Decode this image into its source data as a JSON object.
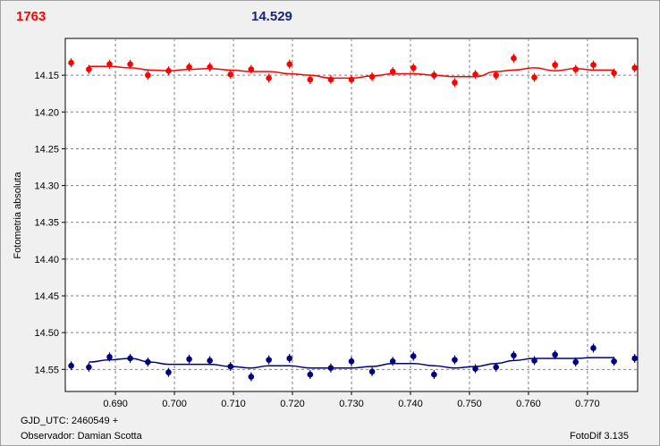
{
  "header": {
    "left_value": "1763",
    "left_color": "#ff0000",
    "right_value": "14.529",
    "right_color": "#1a237e"
  },
  "footer": {
    "gjd": "GJD_UTC: 2460549 +",
    "observer": "Observador: Damian Scotta",
    "software": "FotoDif 3.135"
  },
  "chart_data": {
    "type": "scatter",
    "ylabel": "Fotometria absoluta",
    "xlim": [
      0.6815,
      0.7785
    ],
    "ylim": [
      14.1,
      14.58
    ],
    "y_inverted": true,
    "grid": true,
    "x_ticks": [
      "0.690",
      "0.700",
      "0.710",
      "0.720",
      "0.730",
      "0.740",
      "0.750",
      "0.760",
      "0.770"
    ],
    "x_tick_values": [
      0.69,
      0.7,
      0.71,
      0.72,
      0.73,
      0.74,
      0.75,
      0.76,
      0.77
    ],
    "y_ticks": [
      "14.15",
      "14.20",
      "14.25",
      "14.30",
      "14.35",
      "14.40",
      "14.45",
      "14.50",
      "14.55"
    ],
    "y_tick_values": [
      14.15,
      14.2,
      14.25,
      14.3,
      14.35,
      14.4,
      14.45,
      14.5,
      14.55
    ],
    "series": [
      {
        "color": "#ff0000",
        "x": [
          0.6825,
          0.6855,
          0.689,
          0.6925,
          0.6955,
          0.699,
          0.7025,
          0.706,
          0.7095,
          0.713,
          0.716,
          0.7195,
          0.723,
          0.7265,
          0.73,
          0.7335,
          0.737,
          0.7405,
          0.744,
          0.7475,
          0.751,
          0.7545,
          0.7575,
          0.761,
          0.7645,
          0.768,
          0.771,
          0.7745,
          0.778
        ],
        "y": [
          14.133,
          14.142,
          14.135,
          14.135,
          14.15,
          14.144,
          14.139,
          14.139,
          14.149,
          14.142,
          14.154,
          14.135,
          14.156,
          14.156,
          14.156,
          14.152,
          14.145,
          14.14,
          14.15,
          14.16,
          14.149,
          14.15,
          14.127,
          14.153,
          14.136,
          14.142,
          14.136,
          14.147,
          14.14
        ],
        "fit_x": [
          0.6855,
          0.689,
          0.6925,
          0.696,
          0.699,
          0.7025,
          0.706,
          0.7095,
          0.713,
          0.716,
          0.7195,
          0.723,
          0.7265,
          0.73,
          0.7335,
          0.737,
          0.7405,
          0.744,
          0.7475,
          0.751,
          0.7545,
          0.7575,
          0.761,
          0.7645,
          0.768,
          0.771,
          0.7745
        ],
        "fit_y": [
          14.138,
          14.138,
          14.14,
          14.143,
          14.144,
          14.142,
          14.141,
          14.143,
          14.145,
          14.145,
          14.148,
          14.15,
          14.154,
          14.154,
          14.151,
          14.148,
          14.148,
          14.15,
          14.152,
          14.152,
          14.145,
          14.143,
          14.14,
          14.144,
          14.141,
          14.143,
          14.143
        ]
      },
      {
        "color": "#000080",
        "x": [
          0.6825,
          0.6855,
          0.689,
          0.6925,
          0.6955,
          0.699,
          0.7025,
          0.706,
          0.7095,
          0.713,
          0.716,
          0.7195,
          0.723,
          0.7265,
          0.73,
          0.7335,
          0.737,
          0.7405,
          0.744,
          0.7475,
          0.751,
          0.7545,
          0.7575,
          0.761,
          0.7645,
          0.768,
          0.771,
          0.7745,
          0.778
        ],
        "y": [
          14.545,
          14.547,
          14.533,
          14.535,
          14.54,
          14.554,
          14.536,
          14.538,
          14.546,
          14.56,
          14.537,
          14.535,
          14.557,
          14.548,
          14.539,
          14.553,
          14.539,
          14.532,
          14.557,
          14.537,
          14.549,
          14.547,
          14.531,
          14.538,
          14.53,
          14.54,
          14.521,
          14.539,
          14.535
        ],
        "fit_x": [
          0.6855,
          0.689,
          0.6925,
          0.696,
          0.699,
          0.7025,
          0.706,
          0.7095,
          0.713,
          0.716,
          0.7195,
          0.723,
          0.7265,
          0.73,
          0.7335,
          0.737,
          0.7405,
          0.744,
          0.7475,
          0.751,
          0.7545,
          0.7575,
          0.761,
          0.7645,
          0.768,
          0.771,
          0.7745
        ],
        "fit_y": [
          14.54,
          14.537,
          14.535,
          14.54,
          14.543,
          14.543,
          14.543,
          14.546,
          14.548,
          14.545,
          14.545,
          14.548,
          14.548,
          14.548,
          14.546,
          14.542,
          14.542,
          14.545,
          14.548,
          14.546,
          14.542,
          14.538,
          14.535,
          14.535,
          14.535,
          14.534,
          14.534
        ]
      }
    ]
  }
}
